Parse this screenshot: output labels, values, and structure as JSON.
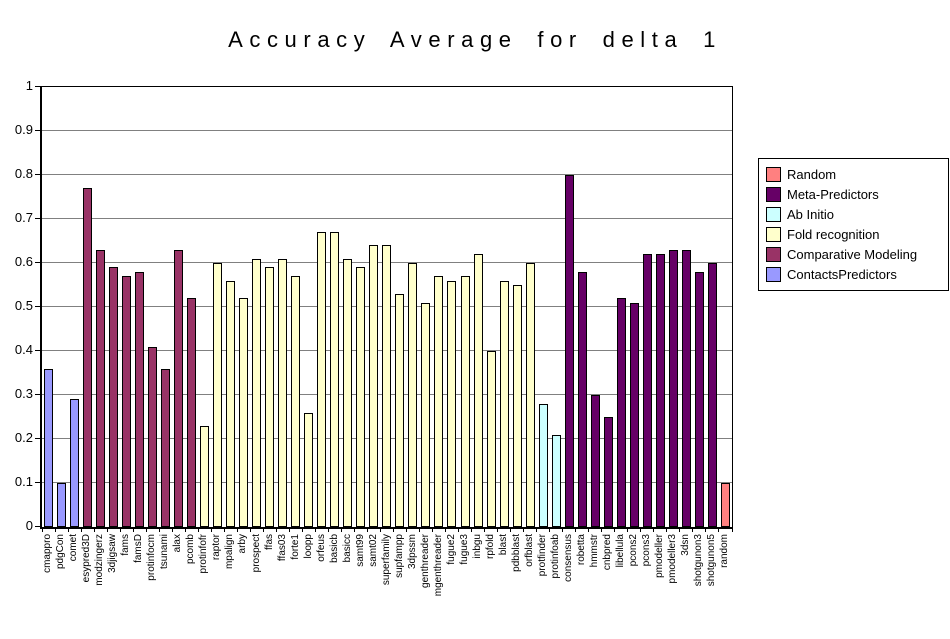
{
  "title": "Accuracy Average for delta 1",
  "y_axis": {
    "labels": [
      "1",
      "0.9",
      "0.8",
      "0.7",
      "0.6",
      "0.5",
      "0.4",
      "0.3",
      "0.2",
      "0.1",
      "0"
    ]
  },
  "legend": {
    "position": "right",
    "items": [
      {
        "label": "Random",
        "color": "#FF8080"
      },
      {
        "label": "Meta-Predictors",
        "color": "#660066"
      },
      {
        "label": "Ab Initio",
        "color": "#CCFFFF"
      },
      {
        "label": "Fold recognition",
        "color": "#FFFFCC"
      },
      {
        "label": "Comparative Modeling",
        "color": "#993366"
      },
      {
        "label": "ContactsPredictors",
        "color": "#9999FF"
      }
    ]
  },
  "chart_data": {
    "type": "bar",
    "title": "Accuracy Average for delta 1",
    "xlabel": "",
    "ylabel": "",
    "ylim": [
      0,
      1
    ],
    "ytick_step": 0.1,
    "grid": true,
    "legend_position": "right",
    "categories": [
      "cmappro",
      "pdgCon",
      "comet",
      "esypred3D",
      "modzingerz",
      "3djigsaw",
      "fams",
      "famsD",
      "protinfocm",
      "tsunami",
      "alax",
      "pcomb",
      "protinfofr",
      "raptor",
      "mpalign",
      "arby",
      "prospect",
      "ffas",
      "ffas03",
      "forte1",
      "loopp",
      "orfeus",
      "basicb",
      "basicc",
      "samt99",
      "samt02",
      "superfamily",
      "supfampp",
      "3dpssm",
      "genthreader",
      "mgenthreader",
      "fugue2",
      "fugue3",
      "inbgu",
      "rpfold",
      "blast",
      "pdbblast",
      "orfblast",
      "protfinder",
      "protinfoab",
      "consensus",
      "robetta",
      "hmmstr",
      "cnbpred",
      "libellula",
      "pcons2",
      "pcons3",
      "pmodeller",
      "pmodeller3",
      "3dsn",
      "shotgunon3",
      "shotgunon5",
      "random"
    ],
    "values": [
      0.36,
      0.1,
      0.29,
      0.77,
      0.63,
      0.59,
      0.57,
      0.58,
      0.41,
      0.36,
      0.63,
      0.52,
      0.23,
      0.6,
      0.56,
      0.52,
      0.61,
      0.59,
      0.61,
      0.57,
      0.26,
      0.67,
      0.67,
      0.61,
      0.59,
      0.64,
      0.64,
      0.53,
      0.6,
      0.51,
      0.57,
      0.56,
      0.57,
      0.62,
      0.4,
      0.56,
      0.55,
      0.6,
      0.28,
      0.21,
      0.8,
      0.58,
      0.3,
      0.25,
      0.52,
      0.51,
      0.62,
      0.62,
      0.63,
      0.63,
      0.58,
      0.6,
      0.1
    ],
    "legend_index": [
      5,
      5,
      5,
      4,
      4,
      4,
      4,
      4,
      4,
      4,
      4,
      4,
      3,
      3,
      3,
      3,
      3,
      3,
      3,
      3,
      3,
      3,
      3,
      3,
      3,
      3,
      3,
      3,
      3,
      3,
      3,
      3,
      3,
      3,
      3,
      3,
      3,
      3,
      2,
      2,
      1,
      1,
      1,
      1,
      1,
      1,
      1,
      1,
      1,
      1,
      1,
      1,
      0
    ]
  }
}
